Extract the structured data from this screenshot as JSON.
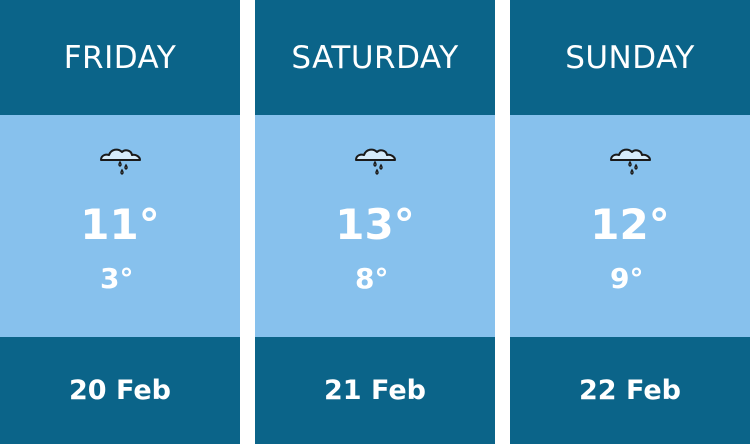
{
  "days": [
    {
      "day": "FRIDAY",
      "icon": "rain-cloud-icon",
      "high": "11°",
      "low": "3°",
      "date": "20 Feb"
    },
    {
      "day": "SATURDAY",
      "icon": "rain-cloud-icon",
      "high": "13°",
      "low": "8°",
      "date": "21 Feb"
    },
    {
      "day": "SUNDAY",
      "icon": "rain-cloud-icon",
      "high": "12°",
      "low": "9°",
      "date": "22 Feb"
    }
  ],
  "colors": {
    "header": "#0b6489",
    "body": "#87c1ed"
  }
}
